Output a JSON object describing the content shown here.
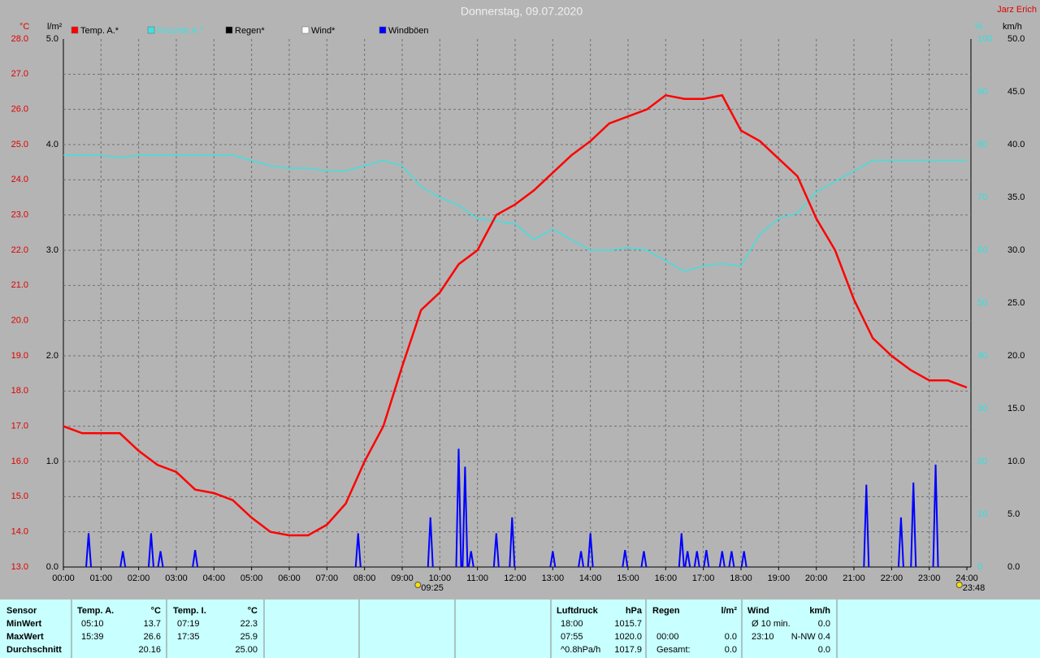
{
  "chart_data": {
    "type": "line",
    "title": "Donnerstag, 09.07.2020",
    "author": "Jarz Erich",
    "xlim": [
      0,
      24
    ],
    "xticks": [
      {
        "value": 0,
        "label": "00:00"
      },
      {
        "value": 1,
        "label": "01:00"
      },
      {
        "value": 2,
        "label": "02:00"
      },
      {
        "value": 3,
        "label": "03:00"
      },
      {
        "value": 4,
        "label": "04:00"
      },
      {
        "value": 5,
        "label": "05:00"
      },
      {
        "value": 6,
        "label": "06:00"
      },
      {
        "value": 7,
        "label": "07:00"
      },
      {
        "value": 8,
        "label": "08:00"
      },
      {
        "value": 9,
        "label": "09:00"
      },
      {
        "value": 10,
        "label": "10:00"
      },
      {
        "value": 11,
        "label": "11:00"
      },
      {
        "value": 12,
        "label": "12:00"
      },
      {
        "value": 13,
        "label": "13:00"
      },
      {
        "value": 14,
        "label": "14:00"
      },
      {
        "value": 15,
        "label": "15:00"
      },
      {
        "value": 16,
        "label": "16:00"
      },
      {
        "value": 17,
        "label": "17:00"
      },
      {
        "value": 18,
        "label": "18:00"
      },
      {
        "value": 19,
        "label": "19:00"
      },
      {
        "value": 20,
        "label": "20:00"
      },
      {
        "value": 21,
        "label": "21:00"
      },
      {
        "value": 22,
        "label": "22:00"
      },
      {
        "value": 23,
        "label": "23:00"
      },
      {
        "value": 24,
        "label": "24:00"
      }
    ],
    "ylabel": "°C",
    "ylim": [
      13,
      28
    ],
    "yticks": [
      {
        "value": 13,
        "label": "13.0"
      },
      {
        "value": 14,
        "label": "14.0"
      },
      {
        "value": 15,
        "label": "15.0"
      },
      {
        "value": 16,
        "label": "16.0"
      },
      {
        "value": 17,
        "label": "17.0"
      },
      {
        "value": 18,
        "label": "18.0"
      },
      {
        "value": 19,
        "label": "19.0"
      },
      {
        "value": 20,
        "label": "20.0"
      },
      {
        "value": 21,
        "label": "21.0"
      },
      {
        "value": 22,
        "label": "22.0"
      },
      {
        "value": 23,
        "label": "23.0"
      },
      {
        "value": 24,
        "label": "24.0"
      },
      {
        "value": 25,
        "label": "25.0"
      },
      {
        "value": 26,
        "label": "26.0"
      },
      {
        "value": 27,
        "label": "27.0"
      },
      {
        "value": 28,
        "label": "28.0"
      }
    ],
    "y2label": "l/m²",
    "y2lim": [
      0,
      5
    ],
    "y2ticks": [
      {
        "value": 0,
        "label": "0.0"
      },
      {
        "value": 1,
        "label": "1.0"
      },
      {
        "value": 2,
        "label": "2.0"
      },
      {
        "value": 3,
        "label": "3.0"
      },
      {
        "value": 4,
        "label": "4.0"
      },
      {
        "value": 5,
        "label": "5.0"
      }
    ],
    "y3label": "%",
    "y3lim": [
      0,
      100
    ],
    "y3ticks": [
      0,
      10,
      20,
      30,
      40,
      50,
      60,
      70,
      80,
      90,
      100
    ],
    "y4label": "km/h",
    "y4lim": [
      0,
      50
    ],
    "y4ticks": [
      {
        "value": 0,
        "label": "0.0"
      },
      {
        "value": 5,
        "label": "5.0"
      },
      {
        "value": 10,
        "label": "10.0"
      },
      {
        "value": 15,
        "label": "15.0"
      },
      {
        "value": 20,
        "label": "20.0"
      },
      {
        "value": 25,
        "label": "25.0"
      },
      {
        "value": 30,
        "label": "30.0"
      },
      {
        "value": 35,
        "label": "35.0"
      },
      {
        "value": 40,
        "label": "40.0"
      },
      {
        "value": 45,
        "label": "45.0"
      },
      {
        "value": 50,
        "label": "50.0"
      }
    ],
    "grid": true,
    "series": [
      {
        "name": "Temp. A.*",
        "color": "#ff0000",
        "axis": "y",
        "x": [
          0,
          0.5,
          1,
          1.5,
          2,
          2.5,
          3,
          3.5,
          4,
          4.5,
          5,
          5.5,
          6,
          6.5,
          7,
          7.5,
          8,
          8.5,
          9,
          9.5,
          10,
          10.5,
          11,
          11.5,
          12,
          12.5,
          13,
          13.5,
          14,
          14.5,
          15,
          15.5,
          16,
          16.5,
          17,
          17.5,
          18,
          18.5,
          19,
          19.5,
          20,
          20.5,
          21,
          21.5,
          22,
          22.5,
          23,
          23.5,
          24
        ],
        "values": [
          17.0,
          16.8,
          16.8,
          16.8,
          16.3,
          15.9,
          15.7,
          15.2,
          15.1,
          14.9,
          14.4,
          14.0,
          13.9,
          13.9,
          14.2,
          14.8,
          16.0,
          17.0,
          18.7,
          20.3,
          20.8,
          21.6,
          22.0,
          23.0,
          23.3,
          23.7,
          24.2,
          24.7,
          25.1,
          25.6,
          25.8,
          26.0,
          26.4,
          26.3,
          26.3,
          26.4,
          25.4,
          25.1,
          24.6,
          24.1,
          22.9,
          22.0,
          20.6,
          19.5,
          19.0,
          18.6,
          18.3,
          18.3,
          18.1
        ]
      },
      {
        "name": "Feuchte A.*",
        "color": "#40e0e0",
        "axis": "y3",
        "x": [
          0,
          0.5,
          1,
          1.5,
          2,
          2.5,
          3,
          3.5,
          4,
          4.5,
          5,
          5.5,
          6,
          6.5,
          7,
          7.5,
          8,
          8.5,
          9,
          9.5,
          10,
          10.5,
          11,
          11.5,
          12,
          12.5,
          13,
          13.5,
          14,
          14.5,
          15,
          15.5,
          16,
          16.5,
          17,
          17.5,
          18,
          18.5,
          19,
          19.5,
          20,
          20.5,
          21,
          21.5,
          22,
          22.5,
          23,
          23.5,
          24
        ],
        "values": [
          78,
          78,
          78,
          77.5,
          78,
          78,
          78,
          78,
          78,
          78,
          77,
          76,
          75.5,
          75.5,
          75,
          75,
          76,
          77,
          76,
          72,
          70,
          68.5,
          66,
          65.5,
          65,
          62,
          64,
          62,
          60,
          60,
          60.5,
          60,
          58,
          56,
          57,
          57.5,
          57,
          63,
          66,
          67,
          71,
          73,
          75,
          77,
          77,
          77,
          77,
          77,
          77
        ]
      },
      {
        "name": "Regen*",
        "color": "#000000",
        "axis": "y2"
      },
      {
        "name": "Wind*",
        "color": "#ffffff",
        "axis": "y4"
      },
      {
        "name": "Windböen",
        "color": "#0000ff",
        "axis": "y4",
        "x": [
          0.67,
          1.58,
          2.33,
          2.58,
          3.5,
          7.83,
          9.75,
          10.5,
          10.67,
          10.83,
          11.5,
          11.92,
          13.0,
          13.75,
          14.0,
          14.92,
          15.42,
          16.42,
          16.58,
          16.83,
          17.08,
          17.5,
          17.75,
          18.08,
          21.33,
          22.25,
          22.58,
          23.17
        ],
        "values": [
          3.2,
          1.5,
          3.2,
          1.5,
          1.6,
          3.2,
          4.7,
          11.2,
          9.5,
          1.5,
          3.2,
          4.7,
          1.5,
          1.5,
          3.2,
          1.6,
          1.5,
          3.2,
          1.5,
          1.5,
          1.6,
          1.5,
          1.5,
          1.5,
          7.8,
          4.7,
          8.0,
          9.7
        ]
      }
    ],
    "annotations": [
      {
        "value": 9.4167,
        "label": "09:25"
      },
      {
        "value": 23.8,
        "label": "23:48"
      }
    ]
  },
  "table": {
    "columns": [
      {
        "cells": [
          [
            "Sensor"
          ],
          [
            "MinWert"
          ],
          [
            "MaxWert"
          ],
          [
            "Durchschnitt"
          ]
        ]
      },
      {
        "cells": [
          [
            "Temp. A.",
            "°C"
          ],
          [
            "05:10",
            "13.7"
          ],
          [
            "15:39",
            "26.6"
          ],
          [
            null,
            "20.16"
          ]
        ]
      },
      {
        "cells": [
          [
            "Temp. I.",
            "°C"
          ],
          [
            "07:19",
            "22.3"
          ],
          [
            "17:35",
            "25.9"
          ],
          [
            null,
            "25.00"
          ]
        ]
      },
      {
        "cells": [
          [
            "Luftdruck",
            "hPa"
          ],
          [
            "18:00",
            "1015.7"
          ],
          [
            "07:55",
            "1020.0"
          ],
          [
            "^0.8hPa/h",
            "1017.9"
          ]
        ]
      },
      {
        "cells": [
          [
            "Regen",
            "l/m²"
          ],
          [
            null,
            null
          ],
          [
            "00:00",
            "0.0"
          ],
          [
            "Gesamt:",
            "0.0"
          ]
        ]
      },
      {
        "cells": [
          [
            "Wind",
            "km/h"
          ],
          [
            "Ø 10 min.",
            "0.0"
          ],
          [
            "23:10",
            "N-NW 0.4"
          ],
          [
            null,
            "0.0"
          ]
        ]
      }
    ]
  }
}
